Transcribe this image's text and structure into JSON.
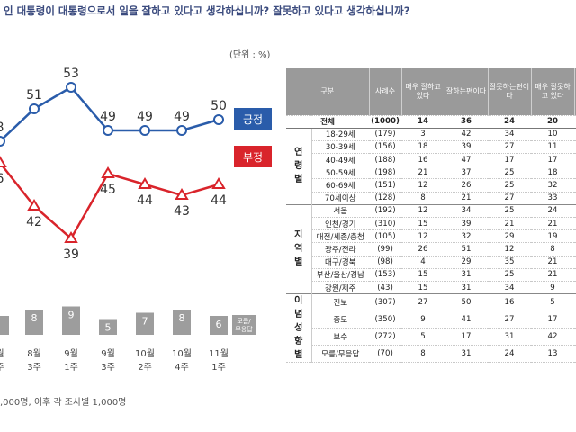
{
  "question": "인 대통령이 대통령으로서 일을 잘하고 있다고 생각하십니까? 잘못하고 있다고 생각하십니까?",
  "unit": "(단위 : %)",
  "note": ",000명, 이후 각 조사별 1,000명",
  "colors": {
    "positive": "#2a5caa",
    "negative": "#d9242b",
    "bar": "#9d9d9d"
  },
  "chart_data": {
    "type": "line",
    "x": [
      "",
      "8월 3주",
      "9월 1주",
      "9월 3주",
      "10월 2주",
      "10월 4주",
      "11월 1주"
    ],
    "x_line1": [
      "월",
      "8월",
      "9월",
      "9월",
      "10월",
      "10월",
      "11월"
    ],
    "x_line2": [
      "주",
      "3주",
      "1주",
      "3주",
      "2주",
      "4주",
      "1주"
    ],
    "series": [
      {
        "name": "긍정",
        "values": [
          48,
          51,
          53,
          49,
          49,
          49,
          50
        ],
        "labels": [
          "8",
          "51",
          "53",
          "49",
          "49",
          "49",
          "50"
        ]
      },
      {
        "name": "부정",
        "values": [
          46,
          42,
          39,
          45,
          44,
          43,
          44
        ],
        "labels": [
          "6",
          "42",
          "39",
          "45",
          "44",
          "43",
          "44"
        ]
      }
    ],
    "bars": {
      "name": "모름/무응답",
      "values": [
        6,
        8,
        9,
        5,
        7,
        8,
        6
      ],
      "labels": [
        "",
        "8",
        "9",
        "5",
        "7",
        "8",
        "6"
      ]
    },
    "legend": {
      "positive": "긍정",
      "negative": "부정",
      "bar": "모름/무응답"
    }
  },
  "table": {
    "header": [
      "구분",
      "사례수",
      "매우 잘하고 있다",
      "잘하는편이다",
      "잘못하는편이다",
      "매우 잘못하고 있다",
      ""
    ],
    "total": {
      "label": "전체",
      "n": "(1000)",
      "v": [
        "14",
        "36",
        "24",
        "20",
        ""
      ]
    },
    "groups": [
      {
        "name": "연령별",
        "rows": [
          {
            "label": "18-29세",
            "n": "(179)",
            "v": [
              "3",
              "42",
              "34",
              "10",
              ""
            ]
          },
          {
            "label": "30-39세",
            "n": "(156)",
            "v": [
              "18",
              "39",
              "27",
              "11",
              ""
            ]
          },
          {
            "label": "40-49세",
            "n": "(188)",
            "v": [
              "16",
              "47",
              "17",
              "17",
              ""
            ]
          },
          {
            "label": "50-59세",
            "n": "(198)",
            "v": [
              "21",
              "37",
              "25",
              "18",
              ""
            ]
          },
          {
            "label": "60-69세",
            "n": "(151)",
            "v": [
              "12",
              "26",
              "25",
              "32",
              ""
            ]
          },
          {
            "label": "70세이상",
            "n": "(128)",
            "v": [
              "8",
              "21",
              "27",
              "33",
              ""
            ]
          }
        ]
      },
      {
        "name": "지역별",
        "rows": [
          {
            "label": "서울",
            "n": "(192)",
            "v": [
              "12",
              "34",
              "25",
              "24",
              ""
            ]
          },
          {
            "label": "인천/경기",
            "n": "(310)",
            "v": [
              "15",
              "39",
              "21",
              "21",
              ""
            ]
          },
          {
            "label": "대전/세종/충청",
            "n": "(105)",
            "v": [
              "12",
              "32",
              "29",
              "19",
              ""
            ]
          },
          {
            "label": "광주/전라",
            "n": "(99)",
            "v": [
              "26",
              "51",
              "12",
              "8",
              ""
            ]
          },
          {
            "label": "대구/경북",
            "n": "(98)",
            "v": [
              "4",
              "29",
              "35",
              "21",
              ""
            ]
          },
          {
            "label": "부산/울산/경남",
            "n": "(153)",
            "v": [
              "15",
              "31",
              "25",
              "21",
              ""
            ]
          },
          {
            "label": "강원/제주",
            "n": "(43)",
            "v": [
              "15",
              "31",
              "34",
              "9",
              ""
            ]
          }
        ]
      },
      {
        "name": "이념성향별",
        "rows": [
          {
            "label": "진보",
            "n": "(307)",
            "v": [
              "27",
              "50",
              "16",
              "5",
              ""
            ]
          },
          {
            "label": "중도",
            "n": "(350)",
            "v": [
              "9",
              "41",
              "27",
              "17",
              ""
            ]
          },
          {
            "label": "보수",
            "n": "(272)",
            "v": [
              "5",
              "17",
              "31",
              "42",
              ""
            ]
          },
          {
            "label": "모름/무응답",
            "n": "(70)",
            "v": [
              "8",
              "31",
              "24",
              "13",
              ""
            ]
          }
        ]
      }
    ]
  }
}
